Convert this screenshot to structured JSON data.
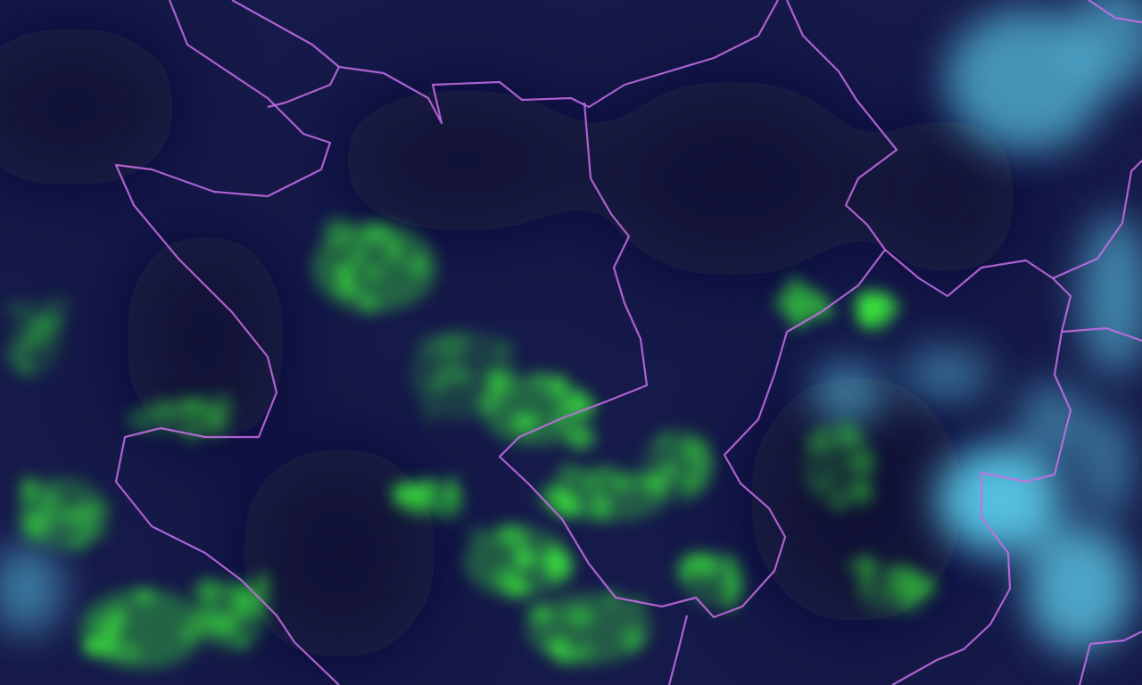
{
  "map": {
    "colors": {
      "background": "#161a4a",
      "background_dark": "#0c0f2e",
      "vegetation_green": "#3cf03c",
      "cloud_cyan": "#5ac8e6",
      "border": "#c86ee6"
    }
  }
}
